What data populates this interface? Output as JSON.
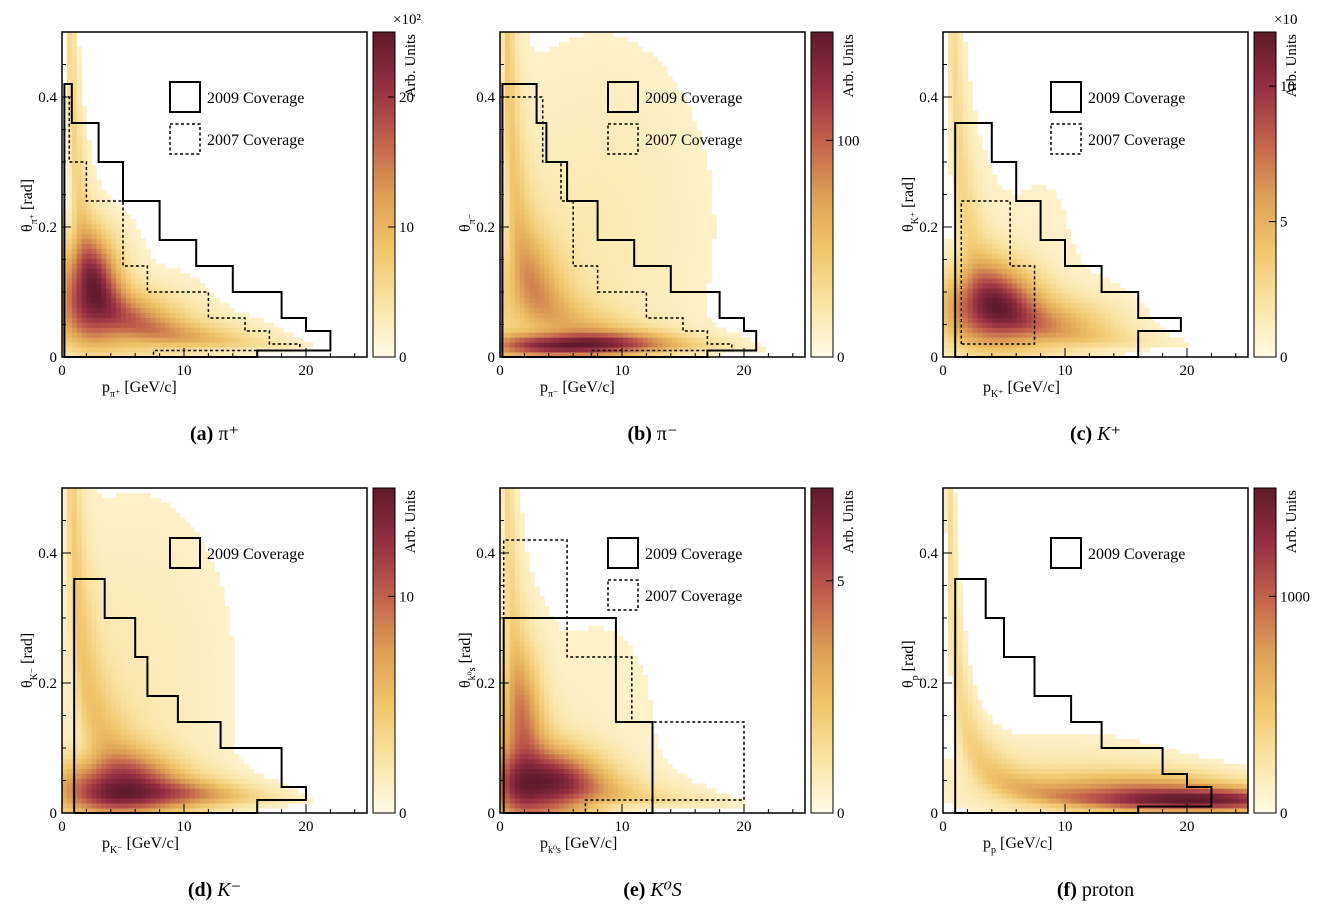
{
  "figure": {
    "colormap": [
      "#fffbe6",
      "#fae3a3",
      "#f0c56b",
      "#dd9e55",
      "#c2604c",
      "#952e43",
      "#5e1a2a"
    ]
  },
  "chart_data": [
    {
      "type": "heatmap",
      "id": "a",
      "caption_tag": "(a)",
      "caption_text": "π⁺",
      "xlabel": "p",
      "xlabel_sub": "π⁺",
      "xlabel_unit": " [GeV/c]",
      "ylabel": "θ",
      "ylabel_sub": "π⁺",
      "ylabel_unit": " [rad]",
      "xlim": [
        0,
        25
      ],
      "ylim": [
        0,
        0.5
      ],
      "xticks": [
        0,
        10,
        20
      ],
      "xticklabels": [
        "0",
        "10",
        "20"
      ],
      "yticks": [
        0,
        0.2,
        0.4
      ],
      "yticklabels": [
        "0",
        "0.2",
        "0.4"
      ],
      "colorbar": {
        "label": "Arb. Units",
        "multiplier": "×10²",
        "range": [
          0,
          25
        ],
        "ticks": [
          0,
          10,
          20
        ],
        "ticklabels": [
          "0",
          "10",
          "20"
        ]
      },
      "legend": [
        "2009 Coverage",
        "2007 Coverage"
      ],
      "coverage_2009": [
        [
          0.2,
          0
        ],
        [
          0.2,
          0.42
        ],
        [
          0.8,
          0.42
        ],
        [
          0.8,
          0.36
        ],
        [
          3,
          0.36
        ],
        [
          3,
          0.3
        ],
        [
          5,
          0.3
        ],
        [
          5,
          0.24
        ],
        [
          8,
          0.24
        ],
        [
          8,
          0.18
        ],
        [
          11,
          0.18
        ],
        [
          11,
          0.14
        ],
        [
          14,
          0.14
        ],
        [
          14,
          0.1
        ],
        [
          18,
          0.1
        ],
        [
          18,
          0.06
        ],
        [
          20,
          0.06
        ],
        [
          20,
          0.04
        ],
        [
          22,
          0.04
        ],
        [
          22,
          0.01
        ],
        [
          16,
          0.01
        ],
        [
          16,
          0
        ]
      ],
      "coverage_2007": [
        [
          0.2,
          0
        ],
        [
          0.2,
          0.4
        ],
        [
          0.6,
          0.4
        ],
        [
          0.6,
          0.3
        ],
        [
          2,
          0.3
        ],
        [
          2,
          0.24
        ],
        [
          5,
          0.24
        ],
        [
          5,
          0.14
        ],
        [
          7,
          0.14
        ],
        [
          7,
          0.1
        ],
        [
          12,
          0.1
        ],
        [
          12,
          0.06
        ],
        [
          15,
          0.06
        ],
        [
          15,
          0.04
        ],
        [
          17,
          0.04
        ],
        [
          17,
          0.02
        ],
        [
          19.5,
          0.02
        ],
        [
          19.5,
          0.01
        ],
        [
          7.5,
          0.01
        ],
        [
          7.5,
          0
        ]
      ],
      "hotspots": [
        {
          "p": 2.2,
          "theta": 0.11,
          "sp": 1.6,
          "st": 0.05,
          "w": 1.0
        },
        {
          "p": 4.5,
          "theta": 0.06,
          "sp": 3.5,
          "st": 0.03,
          "w": 0.45
        },
        {
          "p": 9,
          "theta": 0.03,
          "sp": 5,
          "st": 0.02,
          "w": 0.2
        }
      ],
      "ridge": {
        "k": 0.33,
        "width": 0.38,
        "w": 0.3
      },
      "bg": {
        "p": 8,
        "theta": 0.15,
        "sp": 7,
        "st": 0.2,
        "w": 0.04
      }
    },
    {
      "type": "heatmap",
      "id": "b",
      "caption_tag": "(b)",
      "caption_text": "π⁻",
      "xlabel": "p",
      "xlabel_sub": "π⁻",
      "xlabel_unit": " [GeV/c]",
      "ylabel": "θ",
      "ylabel_sub": "π⁻",
      "ylabel_unit": "",
      "xlim": [
        0,
        25
      ],
      "ylim": [
        0,
        0.5
      ],
      "xticks": [
        0,
        10,
        20
      ],
      "xticklabels": [
        "0",
        "10",
        "20"
      ],
      "yticks": [
        0,
        0.2,
        0.4
      ],
      "yticklabels": [
        "0",
        "0.2",
        "0.4"
      ],
      "colorbar": {
        "label": "Arb. Units",
        "multiplier": "",
        "range": [
          0,
          150
        ],
        "ticks": [
          0,
          100
        ],
        "ticklabels": [
          "0",
          "100"
        ]
      },
      "legend": [
        "2009 Coverage",
        "2007 Coverage"
      ],
      "coverage_2009": [
        [
          0.2,
          0
        ],
        [
          0.2,
          0.42
        ],
        [
          3,
          0.42
        ],
        [
          3,
          0.36
        ],
        [
          3.8,
          0.36
        ],
        [
          3.8,
          0.3
        ],
        [
          5.5,
          0.3
        ],
        [
          5.5,
          0.24
        ],
        [
          8,
          0.24
        ],
        [
          8,
          0.18
        ],
        [
          11,
          0.18
        ],
        [
          11,
          0.14
        ],
        [
          14,
          0.14
        ],
        [
          14,
          0.1
        ],
        [
          18,
          0.1
        ],
        [
          18,
          0.06
        ],
        [
          20,
          0.06
        ],
        [
          20,
          0.04
        ],
        [
          21,
          0.04
        ],
        [
          21,
          0.01
        ],
        [
          17,
          0.01
        ],
        [
          17,
          0
        ]
      ],
      "coverage_2007": [
        [
          0.2,
          0
        ],
        [
          0.2,
          0.4
        ],
        [
          3.5,
          0.4
        ],
        [
          3.5,
          0.3
        ],
        [
          5,
          0.3
        ],
        [
          5,
          0.24
        ],
        [
          6,
          0.24
        ],
        [
          6,
          0.14
        ],
        [
          8,
          0.14
        ],
        [
          8,
          0.1
        ],
        [
          12,
          0.1
        ],
        [
          12,
          0.06
        ],
        [
          15,
          0.06
        ],
        [
          15,
          0.04
        ],
        [
          17,
          0.04
        ],
        [
          17,
          0.02
        ],
        [
          19,
          0.02
        ],
        [
          19,
          0.01
        ],
        [
          7.5,
          0.01
        ],
        [
          7.5,
          0
        ]
      ],
      "hotspots": [
        {
          "p": 6,
          "theta": 0.018,
          "sp": 4.5,
          "st": 0.012,
          "w": 1.0
        },
        {
          "p": 2,
          "theta": 0.1,
          "sp": 2,
          "st": 0.06,
          "w": 0.25
        }
      ],
      "ridge": {
        "k": 0.3,
        "width": 0.5,
        "w": 0.3
      },
      "bg": {
        "p": 8,
        "theta": 0.2,
        "sp": 8,
        "st": 0.25,
        "w": 0.08
      }
    },
    {
      "type": "heatmap",
      "id": "c",
      "caption_tag": "(c)",
      "caption_text": "K⁺",
      "xlabel": "p",
      "xlabel_sub": "K⁺",
      "xlabel_unit": " [GeV/c]",
      "ylabel": "θ",
      "ylabel_sub": "K⁺",
      "ylabel_unit": " [rad]",
      "xlim": [
        0,
        25
      ],
      "ylim": [
        0,
        0.5
      ],
      "xticks": [
        0,
        10,
        20
      ],
      "xticklabels": [
        "0",
        "10",
        "20"
      ],
      "yticks": [
        0,
        0.2,
        0.4
      ],
      "yticklabels": [
        "0",
        "0.2",
        "0.4"
      ],
      "colorbar": {
        "label": "Arb. Units",
        "multiplier": "×10",
        "range": [
          0,
          12
        ],
        "ticks": [
          0,
          5,
          10
        ],
        "ticklabels": [
          "0",
          "5",
          "10"
        ]
      },
      "legend": [
        "2009 Coverage",
        "2007 Coverage"
      ],
      "coverage_2009": [
        [
          1,
          0
        ],
        [
          1,
          0.36
        ],
        [
          4,
          0.36
        ],
        [
          4,
          0.3
        ],
        [
          6,
          0.3
        ],
        [
          6,
          0.24
        ],
        [
          8,
          0.24
        ],
        [
          8,
          0.18
        ],
        [
          10,
          0.18
        ],
        [
          10,
          0.14
        ],
        [
          13,
          0.14
        ],
        [
          13,
          0.1
        ],
        [
          16,
          0.1
        ],
        [
          16,
          0.06
        ],
        [
          19.5,
          0.06
        ],
        [
          19.5,
          0.04
        ],
        [
          16,
          0.04
        ],
        [
          16,
          0
        ]
      ],
      "coverage_2007": [
        [
          1.5,
          0.02
        ],
        [
          1.5,
          0.24
        ],
        [
          5.5,
          0.24
        ],
        [
          5.5,
          0.14
        ],
        [
          7.5,
          0.14
        ],
        [
          7.5,
          0.02
        ]
      ],
      "hotspots": [
        {
          "p": 3.8,
          "theta": 0.08,
          "sp": 2.5,
          "st": 0.04,
          "w": 1.0
        },
        {
          "p": 8,
          "theta": 0.05,
          "sp": 4,
          "st": 0.03,
          "w": 0.35
        }
      ],
      "ridge": {
        "k": 0.4,
        "width": 0.4,
        "w": 0.25
      },
      "bg": {
        "p": 8,
        "theta": 0.2,
        "sp": 8,
        "st": 0.25,
        "w": 0.05
      }
    },
    {
      "type": "heatmap",
      "id": "d",
      "caption_tag": "(d)",
      "caption_text": "K⁻",
      "xlabel": "p",
      "xlabel_sub": "K⁻",
      "xlabel_unit": " [GeV/c]",
      "ylabel": "θ",
      "ylabel_sub": "K⁻",
      "ylabel_unit": " [rad]",
      "xlim": [
        0,
        25
      ],
      "ylim": [
        0,
        0.5
      ],
      "xticks": [
        0,
        10,
        20
      ],
      "xticklabels": [
        "0",
        "10",
        "20"
      ],
      "yticks": [
        0,
        0.2,
        0.4
      ],
      "yticklabels": [
        "0",
        "0.2",
        "0.4"
      ],
      "colorbar": {
        "label": "Arb. Units",
        "multiplier": "",
        "range": [
          0,
          15
        ],
        "ticks": [
          0,
          10
        ],
        "ticklabels": [
          "0",
          "10"
        ]
      },
      "legend": [
        "2009 Coverage"
      ],
      "coverage_2009": [
        [
          1,
          0
        ],
        [
          1,
          0.36
        ],
        [
          3.5,
          0.36
        ],
        [
          3.5,
          0.3
        ],
        [
          6,
          0.3
        ],
        [
          6,
          0.24
        ],
        [
          7,
          0.24
        ],
        [
          7,
          0.18
        ],
        [
          9.5,
          0.18
        ],
        [
          9.5,
          0.14
        ],
        [
          13,
          0.14
        ],
        [
          13,
          0.1
        ],
        [
          18,
          0.1
        ],
        [
          18,
          0.04
        ],
        [
          20,
          0.04
        ],
        [
          20,
          0.02
        ],
        [
          16,
          0.02
        ],
        [
          16,
          0
        ]
      ],
      "coverage_2007": [],
      "hotspots": [
        {
          "p": 4,
          "theta": 0.04,
          "sp": 3,
          "st": 0.03,
          "w": 1.0
        },
        {
          "p": 8,
          "theta": 0.025,
          "sp": 4,
          "st": 0.015,
          "w": 0.6
        }
      ],
      "ridge": {
        "k": 0.4,
        "width": 0.45,
        "w": 0.35
      },
      "bg": {
        "p": 6,
        "theta": 0.2,
        "sp": 7,
        "st": 0.25,
        "w": 0.1
      }
    },
    {
      "type": "heatmap",
      "id": "e",
      "caption_tag": "(e)",
      "caption_text": "K⁰S",
      "xlabel": "p",
      "xlabel_sub": "k⁰s",
      "xlabel_unit": " [GeV/c]",
      "ylabel": "θ",
      "ylabel_sub": "k⁰s",
      "ylabel_unit": " [rad]",
      "xlim": [
        0,
        25
      ],
      "ylim": [
        0,
        0.5
      ],
      "xticks": [
        0,
        10,
        20
      ],
      "xticklabels": [
        "0",
        "10",
        "20"
      ],
      "yticks": [
        0,
        0.2,
        0.4
      ],
      "yticklabels": [
        "0",
        "0.2",
        "0.4"
      ],
      "colorbar": {
        "label": "Arb. Units",
        "multiplier": "",
        "range": [
          0,
          7
        ],
        "ticks": [
          0,
          5
        ],
        "ticklabels": [
          "0",
          "5"
        ]
      },
      "legend": [
        "2009 Coverage",
        "2007 Coverage"
      ],
      "coverage_2009": [
        [
          0.3,
          0
        ],
        [
          0.3,
          0.3
        ],
        [
          9.5,
          0.3
        ],
        [
          9.5,
          0.14
        ],
        [
          12.5,
          0.14
        ],
        [
          12.5,
          0
        ]
      ],
      "coverage_2007": [
        [
          0.3,
          0
        ],
        [
          0.3,
          0.42
        ],
        [
          5.5,
          0.42
        ],
        [
          5.5,
          0.24
        ],
        [
          10.8,
          0.24
        ],
        [
          10.8,
          0.14
        ],
        [
          20,
          0.14
        ],
        [
          20,
          0.02
        ],
        [
          7,
          0.02
        ],
        [
          7,
          0
        ]
      ],
      "hotspots": [
        {
          "p": 3.5,
          "theta": 0.04,
          "sp": 3,
          "st": 0.035,
          "w": 1.0
        },
        {
          "p": 1.5,
          "theta": 0.12,
          "sp": 1.2,
          "st": 0.08,
          "w": 0.5
        }
      ],
      "ridge": {
        "k": 0.3,
        "width": 0.5,
        "w": 0.25
      },
      "bg": {
        "p": 8,
        "theta": 0.15,
        "sp": 8,
        "st": 0.25,
        "w": 0.05
      }
    },
    {
      "type": "heatmap",
      "id": "f",
      "caption_tag": "(f)",
      "caption_text": "proton",
      "xlabel": "p",
      "xlabel_sub": "p",
      "xlabel_unit": " [GeV/c]",
      "ylabel": "θ",
      "ylabel_sub": "p",
      "ylabel_unit": " [rad]",
      "xlim": [
        0,
        25
      ],
      "ylim": [
        0,
        0.5
      ],
      "xticks": [
        0,
        10,
        20
      ],
      "xticklabels": [
        "0",
        "10",
        "20"
      ],
      "yticks": [
        0,
        0.2,
        0.4
      ],
      "yticklabels": [
        "0",
        "0.2",
        "0.4"
      ],
      "colorbar": {
        "label": "Arb. Units",
        "multiplier": "",
        "range": [
          0,
          1500
        ],
        "ticks": [
          0,
          1000
        ],
        "ticklabels": [
          "0",
          "1000"
        ]
      },
      "legend": [
        "2009 Coverage"
      ],
      "coverage_2009": [
        [
          1,
          0
        ],
        [
          1,
          0.36
        ],
        [
          3.5,
          0.36
        ],
        [
          3.5,
          0.3
        ],
        [
          5,
          0.3
        ],
        [
          5,
          0.24
        ],
        [
          7.5,
          0.24
        ],
        [
          7.5,
          0.18
        ],
        [
          10.5,
          0.18
        ],
        [
          10.5,
          0.14
        ],
        [
          13,
          0.14
        ],
        [
          13,
          0.1
        ],
        [
          18,
          0.1
        ],
        [
          18,
          0.06
        ],
        [
          20,
          0.06
        ],
        [
          20,
          0.04
        ],
        [
          22,
          0.04
        ],
        [
          22,
          0.01
        ],
        [
          16,
          0.01
        ],
        [
          16,
          0
        ]
      ],
      "coverage_2007": [],
      "hotspots": [
        {
          "p": 22,
          "theta": 0.02,
          "sp": 6,
          "st": 0.012,
          "w": 1.0
        },
        {
          "p": 16,
          "theta": 0.035,
          "sp": 6,
          "st": 0.02,
          "w": 0.5
        }
      ],
      "ridge": {
        "k": 0.25,
        "width": 0.4,
        "w": 0.25
      },
      "bg": {
        "p": 10,
        "theta": 0.06,
        "sp": 8,
        "st": 0.05,
        "w": 0.1
      }
    }
  ]
}
